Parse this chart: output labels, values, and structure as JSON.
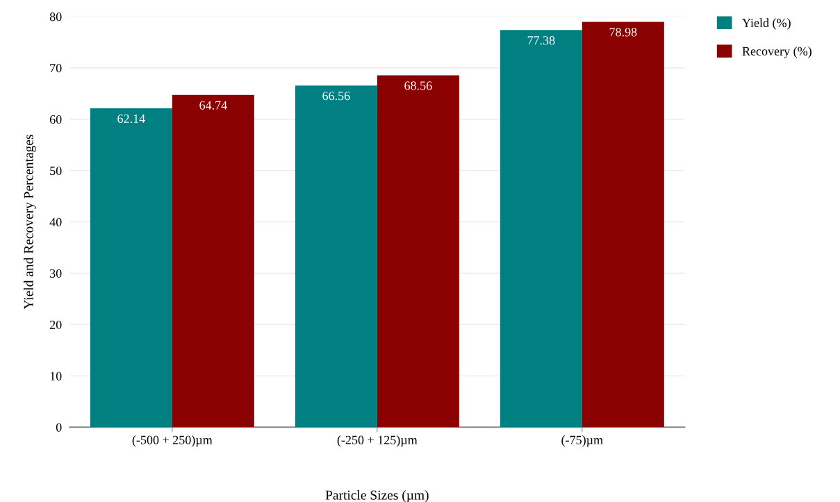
{
  "chart_data": {
    "type": "bar",
    "xlabel": "Particle Sizes (µm)",
    "ylabel": "Yield and Recovery Percentages",
    "categories": [
      "(-500 + 250)µm",
      "(-250 + 125)µm",
      "(-75)µm"
    ],
    "series": [
      {
        "name": "Yield (%)",
        "color": "#008080",
        "values": [
          62.14,
          66.56,
          77.38
        ]
      },
      {
        "name": "Recovery (%)",
        "color": "#8b0000",
        "values": [
          64.74,
          68.56,
          78.98
        ]
      }
    ],
    "ylim": [
      0,
      80
    ],
    "yticks": [
      0,
      10,
      20,
      30,
      40,
      50,
      60,
      70,
      80
    ],
    "grid": "y",
    "legend": "top right",
    "data_labels": true
  }
}
